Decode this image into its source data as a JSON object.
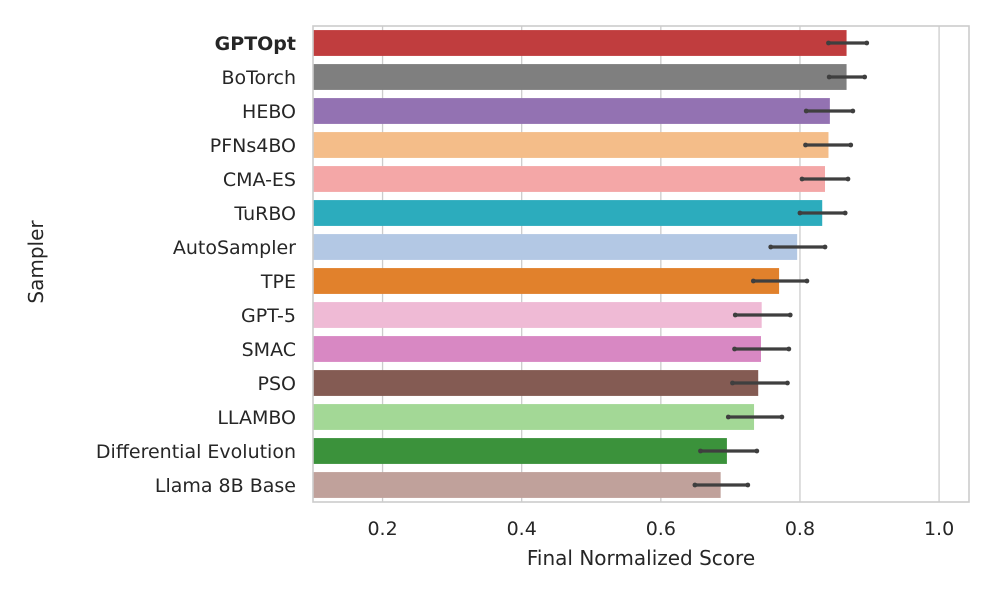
{
  "chart_data": {
    "type": "bar",
    "orientation": "horizontal",
    "xlabel": "Final Normalized Score",
    "ylabel": "Sampler",
    "xlim": [
      0.1,
      1.043
    ],
    "xticks": [
      "0.2",
      "0.4",
      "0.6",
      "0.8",
      "1.0"
    ],
    "xtick_values": [
      0.2,
      0.4,
      0.6,
      0.8,
      1.0
    ],
    "grid": "vertical",
    "bold_category": "GPTOpt",
    "categories": [
      "GPTOpt",
      "BoTorch",
      "HEBO",
      "PFNs4BO",
      "CMA-ES",
      "TuRBO",
      "AutoSampler",
      "TPE",
      "GPT-5",
      "SMAC",
      "PSO",
      "LLAMBO",
      "Differential Evolution",
      "Llama 8B Base"
    ],
    "values": [
      0.867,
      0.867,
      0.843,
      0.841,
      0.836,
      0.832,
      0.796,
      0.77,
      0.745,
      0.744,
      0.74,
      0.734,
      0.695,
      0.686
    ],
    "error_low": [
      0.841,
      0.842,
      0.809,
      0.808,
      0.803,
      0.8,
      0.758,
      0.733,
      0.707,
      0.706,
      0.703,
      0.697,
      0.657,
      0.649
    ],
    "error_high": [
      0.896,
      0.893,
      0.876,
      0.873,
      0.869,
      0.865,
      0.836,
      0.81,
      0.786,
      0.784,
      0.782,
      0.774,
      0.738,
      0.725
    ],
    "colors": [
      "#c03d3e",
      "#7f7f7f",
      "#9372b2",
      "#f4bd89",
      "#f4a7a7",
      "#2cacbd",
      "#b3c8e4",
      "#e1812c",
      "#efbad5",
      "#d888c3",
      "#845b53",
      "#a3d896",
      "#3b923b",
      "#c0a19b"
    ],
    "error_color": "#3f3f3f",
    "grid_color": "#cccccc",
    "frame_color": "#cccccc"
  }
}
